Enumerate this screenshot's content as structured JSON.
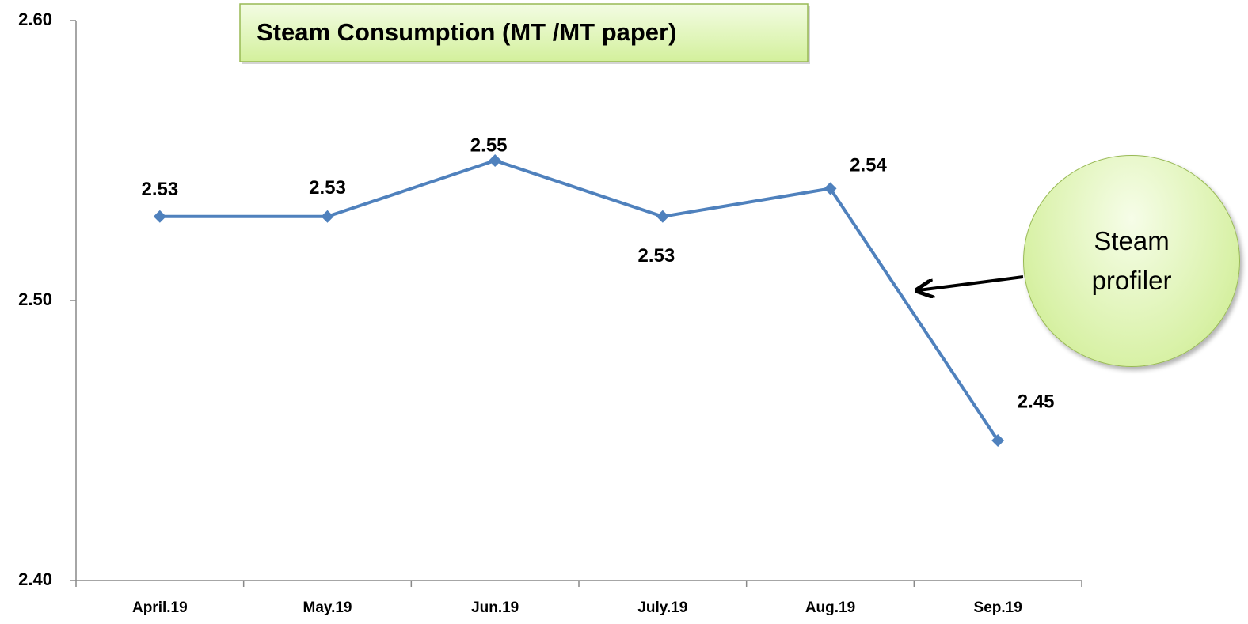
{
  "chart_data": {
    "type": "line",
    "title": "Steam  Consumption (MT /MT paper)",
    "annotation": "Steam profiler",
    "categories": [
      "April.19",
      "May.19",
      "Jun.19",
      "July.19",
      "Aug.19",
      "Sep.19"
    ],
    "series": [
      {
        "name": "Steam Consumption",
        "color": "#4f81bd",
        "values": [
          2.53,
          2.53,
          2.55,
          2.53,
          2.54,
          2.45
        ]
      }
    ],
    "ylim": [
      2.4,
      2.6
    ],
    "yticks": [
      {
        "value": 2.4,
        "label": "2.40"
      },
      {
        "value": 2.5,
        "label": "2.50"
      },
      {
        "value": 2.6,
        "label": "2.60"
      }
    ],
    "grid": false
  }
}
